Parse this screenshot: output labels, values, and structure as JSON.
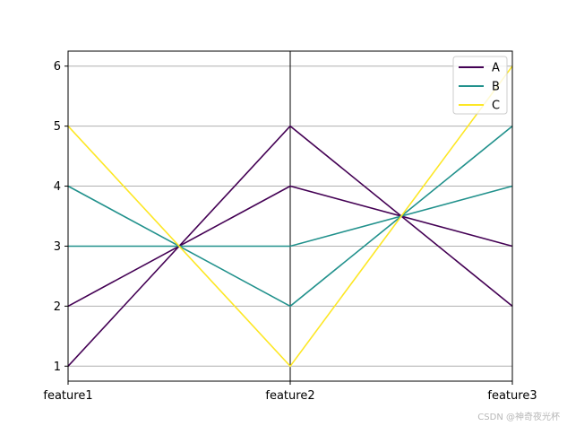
{
  "chart_data": {
    "type": "parallel-coordinates",
    "axes": [
      "feature1",
      "feature2",
      "feature3"
    ],
    "ylim": [
      0.75,
      6.25
    ],
    "yticks": [
      1,
      2,
      3,
      4,
      5,
      6
    ],
    "grid": true,
    "legend": {
      "placement": "top-right",
      "entries": [
        {
          "name": "A",
          "color": "#440154"
        },
        {
          "name": "B",
          "color": "#21918c"
        },
        {
          "name": "C",
          "color": "#fde725"
        }
      ]
    },
    "series": [
      {
        "class": "A",
        "color": "#440154",
        "values": [
          1,
          5,
          2
        ]
      },
      {
        "class": "A",
        "color": "#440154",
        "values": [
          2,
          4,
          3
        ]
      },
      {
        "class": "B",
        "color": "#21918c",
        "values": [
          3,
          3,
          4
        ]
      },
      {
        "class": "B",
        "color": "#21918c",
        "values": [
          4,
          2,
          5
        ]
      },
      {
        "class": "C",
        "color": "#fde725",
        "values": [
          5,
          1,
          6
        ]
      }
    ]
  },
  "watermark": "CSDN @神奇夜光杯"
}
